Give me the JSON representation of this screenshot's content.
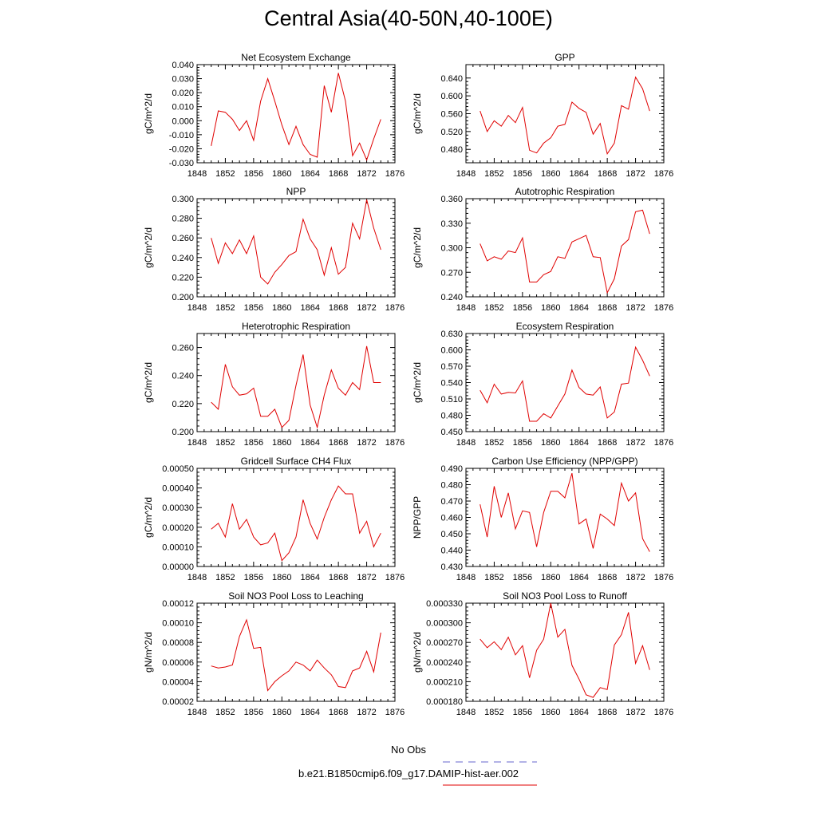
{
  "title": "Central Asia(40-50N,40-100E)",
  "x_ticks": [
    1848,
    1852,
    1856,
    1860,
    1864,
    1868,
    1872,
    1876
  ],
  "years": [
    1850,
    1851,
    1852,
    1853,
    1854,
    1855,
    1856,
    1857,
    1858,
    1859,
    1860,
    1861,
    1862,
    1863,
    1864,
    1865,
    1866,
    1867,
    1868,
    1869,
    1870,
    1871,
    1872,
    1873,
    1874
  ],
  "legend": {
    "obs_label": "No Obs",
    "model_label": "b.e21.B1850cmip6.f09_g17.DAMIP-hist-aer.002",
    "obs_color": "#6666cc",
    "model_color": "#e00000"
  },
  "chart_data": [
    {
      "type": "line",
      "title": "Net Ecosystem Exchange",
      "ylabel": "gC/m^2/d",
      "xlim": [
        1848,
        1876
      ],
      "ylim": [
        -0.03,
        0.04
      ],
      "yticks": [
        "0.040",
        "0.030",
        "0.020",
        "0.010",
        "0.000",
        "-0.010",
        "-0.020",
        "-0.030"
      ],
      "ytick_values": [
        0.04,
        0.03,
        0.02,
        0.01,
        0.0,
        -0.01,
        -0.02,
        -0.03
      ],
      "values": [
        -0.018,
        0.007,
        0.006,
        0.001,
        -0.007,
        0.0,
        -0.014,
        0.014,
        0.03,
        0.014,
        -0.003,
        -0.017,
        -0.004,
        -0.017,
        -0.024,
        -0.026,
        0.025,
        0.006,
        0.034,
        0.014,
        -0.025,
        -0.016,
        -0.028,
        -0.013,
        0.001
      ]
    },
    {
      "type": "line",
      "title": "GPP",
      "ylabel": "gC/m^2/d",
      "xlim": [
        1848,
        1876
      ],
      "ylim": [
        0.45,
        0.67
      ],
      "yticks": [
        "0.640",
        "0.600",
        "0.560",
        "0.520",
        "0.480"
      ],
      "ytick_values": [
        0.64,
        0.6,
        0.56,
        0.52,
        0.48
      ],
      "values": [
        0.566,
        0.52,
        0.544,
        0.532,
        0.556,
        0.54,
        0.574,
        0.478,
        0.472,
        0.494,
        0.506,
        0.532,
        0.536,
        0.586,
        0.572,
        0.563,
        0.514,
        0.538,
        0.47,
        0.494,
        0.578,
        0.57,
        0.642,
        0.616,
        0.566
      ]
    },
    {
      "type": "line",
      "title": "NPP",
      "ylabel": "gC/m^2/d",
      "xlim": [
        1848,
        1876
      ],
      "ylim": [
        0.2,
        0.3
      ],
      "yticks": [
        "0.300",
        "0.280",
        "0.260",
        "0.240",
        "0.220",
        "0.200"
      ],
      "ytick_values": [
        0.3,
        0.28,
        0.26,
        0.24,
        0.22,
        0.2
      ],
      "values": [
        0.26,
        0.234,
        0.255,
        0.244,
        0.258,
        0.244,
        0.262,
        0.22,
        0.213,
        0.225,
        0.233,
        0.242,
        0.246,
        0.279,
        0.259,
        0.248,
        0.222,
        0.25,
        0.223,
        0.23,
        0.275,
        0.259,
        0.299,
        0.27,
        0.248
      ]
    },
    {
      "type": "line",
      "title": "Autotrophic Respiration",
      "ylabel": "gC/m^2/d",
      "xlim": [
        1848,
        1876
      ],
      "ylim": [
        0.24,
        0.36
      ],
      "yticks": [
        "0.360",
        "0.330",
        "0.300",
        "0.270",
        "0.240"
      ],
      "ytick_values": [
        0.36,
        0.33,
        0.3,
        0.27,
        0.24
      ],
      "values": [
        0.305,
        0.284,
        0.289,
        0.286,
        0.296,
        0.294,
        0.312,
        0.258,
        0.258,
        0.267,
        0.271,
        0.289,
        0.287,
        0.307,
        0.311,
        0.315,
        0.289,
        0.288,
        0.245,
        0.262,
        0.302,
        0.31,
        0.344,
        0.346,
        0.317
      ]
    },
    {
      "type": "line",
      "title": "Heterotrophic Respiration",
      "ylabel": "gC/m^2/d",
      "xlim": [
        1848,
        1876
      ],
      "ylim": [
        0.2,
        0.27
      ],
      "yticks": [
        "0.260",
        "0.240",
        "0.220",
        "0.200"
      ],
      "ytick_values": [
        0.26,
        0.24,
        0.22,
        0.2
      ],
      "values": [
        0.221,
        0.216,
        0.248,
        0.232,
        0.226,
        0.227,
        0.231,
        0.211,
        0.211,
        0.216,
        0.203,
        0.208,
        0.233,
        0.255,
        0.219,
        0.203,
        0.226,
        0.244,
        0.231,
        0.226,
        0.235,
        0.23,
        0.261,
        0.235,
        0.235
      ]
    },
    {
      "type": "line",
      "title": "Ecosystem Respiration",
      "ylabel": "gC/m^2/d",
      "xlim": [
        1848,
        1876
      ],
      "ylim": [
        0.45,
        0.63
      ],
      "yticks": [
        "0.630",
        "0.600",
        "0.570",
        "0.540",
        "0.510",
        "0.480",
        "0.450"
      ],
      "ytick_values": [
        0.63,
        0.6,
        0.57,
        0.54,
        0.51,
        0.48,
        0.45
      ],
      "values": [
        0.526,
        0.503,
        0.537,
        0.519,
        0.522,
        0.521,
        0.543,
        0.469,
        0.469,
        0.483,
        0.475,
        0.497,
        0.519,
        0.563,
        0.531,
        0.519,
        0.517,
        0.532,
        0.475,
        0.486,
        0.537,
        0.539,
        0.605,
        0.581,
        0.552
      ]
    },
    {
      "type": "line",
      "title": "Gridcell Surface CH4 Flux",
      "ylabel": "gC/m^2/d",
      "xlim": [
        1848,
        1876
      ],
      "ylim": [
        0.0,
        0.0005
      ],
      "yticks": [
        "0.00050",
        "0.00040",
        "0.00030",
        "0.00020",
        "0.00010",
        "0.00000"
      ],
      "ytick_values": [
        0.0005,
        0.0004,
        0.0003,
        0.0002,
        0.0001,
        0.0
      ],
      "values": [
        0.00019,
        0.00022,
        0.00015,
        0.00032,
        0.00019,
        0.00024,
        0.00015,
        0.00011,
        0.00012,
        0.00017,
        3e-05,
        7e-05,
        0.00015,
        0.00034,
        0.00022,
        0.00014,
        0.00025,
        0.00034,
        0.00041,
        0.00037,
        0.00037,
        0.00017,
        0.00023,
        0.0001,
        0.00017
      ]
    },
    {
      "type": "line",
      "title": "Carbon Use Efficiency (NPP/GPP)",
      "ylabel": "NPP/GPP",
      "xlim": [
        1848,
        1876
      ],
      "ylim": [
        0.43,
        0.49
      ],
      "yticks": [
        "0.490",
        "0.480",
        "0.470",
        "0.460",
        "0.450",
        "0.440",
        "0.430"
      ],
      "ytick_values": [
        0.49,
        0.48,
        0.47,
        0.46,
        0.45,
        0.44,
        0.43
      ],
      "values": [
        0.468,
        0.448,
        0.479,
        0.46,
        0.475,
        0.453,
        0.464,
        0.463,
        0.442,
        0.463,
        0.476,
        0.476,
        0.472,
        0.487,
        0.456,
        0.459,
        0.441,
        0.462,
        0.459,
        0.455,
        0.481,
        0.47,
        0.475,
        0.447,
        0.439
      ]
    },
    {
      "type": "line",
      "title": "Soil NO3 Pool Loss to Leaching",
      "ylabel": "gN/m^2/d",
      "xlim": [
        1848,
        1876
      ],
      "ylim": [
        2e-05,
        0.00012
      ],
      "yticks": [
        "0.00012",
        "0.00010",
        "0.00008",
        "0.00006",
        "0.00004",
        "0.00002"
      ],
      "ytick_values": [
        0.00012,
        0.0001,
        8e-05,
        6e-05,
        4e-05,
        2e-05
      ],
      "values": [
        5.6e-05,
        5.4e-05,
        5.5e-05,
        5.7e-05,
        8.6e-05,
        0.000103,
        7.4e-05,
        7.5e-05,
        3.1e-05,
        4e-05,
        4.6e-05,
        5.1e-05,
        6e-05,
        5.7e-05,
        5.1e-05,
        6.2e-05,
        5.4e-05,
        4.7e-05,
        3.5e-05,
        3.4e-05,
        5.1e-05,
        5.4e-05,
        7.1e-05,
        5e-05,
        9e-05
      ]
    },
    {
      "type": "line",
      "title": "Soil NO3 Pool Loss to Runoff",
      "ylabel": "gN/m^2/d",
      "xlim": [
        1848,
        1876
      ],
      "ylim": [
        0.00018,
        0.00033
      ],
      "yticks": [
        "0.000330",
        "0.000300",
        "0.000270",
        "0.000240",
        "0.000210",
        "0.000180"
      ],
      "ytick_values": [
        0.00033,
        0.0003,
        0.00027,
        0.00024,
        0.00021,
        0.00018
      ],
      "values": [
        0.000275,
        0.000262,
        0.000271,
        0.000259,
        0.000278,
        0.000251,
        0.000265,
        0.000216,
        0.000258,
        0.000275,
        0.00033,
        0.000278,
        0.00029,
        0.000235,
        0.000214,
        0.00019,
        0.000186,
        0.000201,
        0.000198,
        0.000266,
        0.000282,
        0.000316,
        0.000238,
        0.000265,
        0.000228
      ]
    }
  ]
}
